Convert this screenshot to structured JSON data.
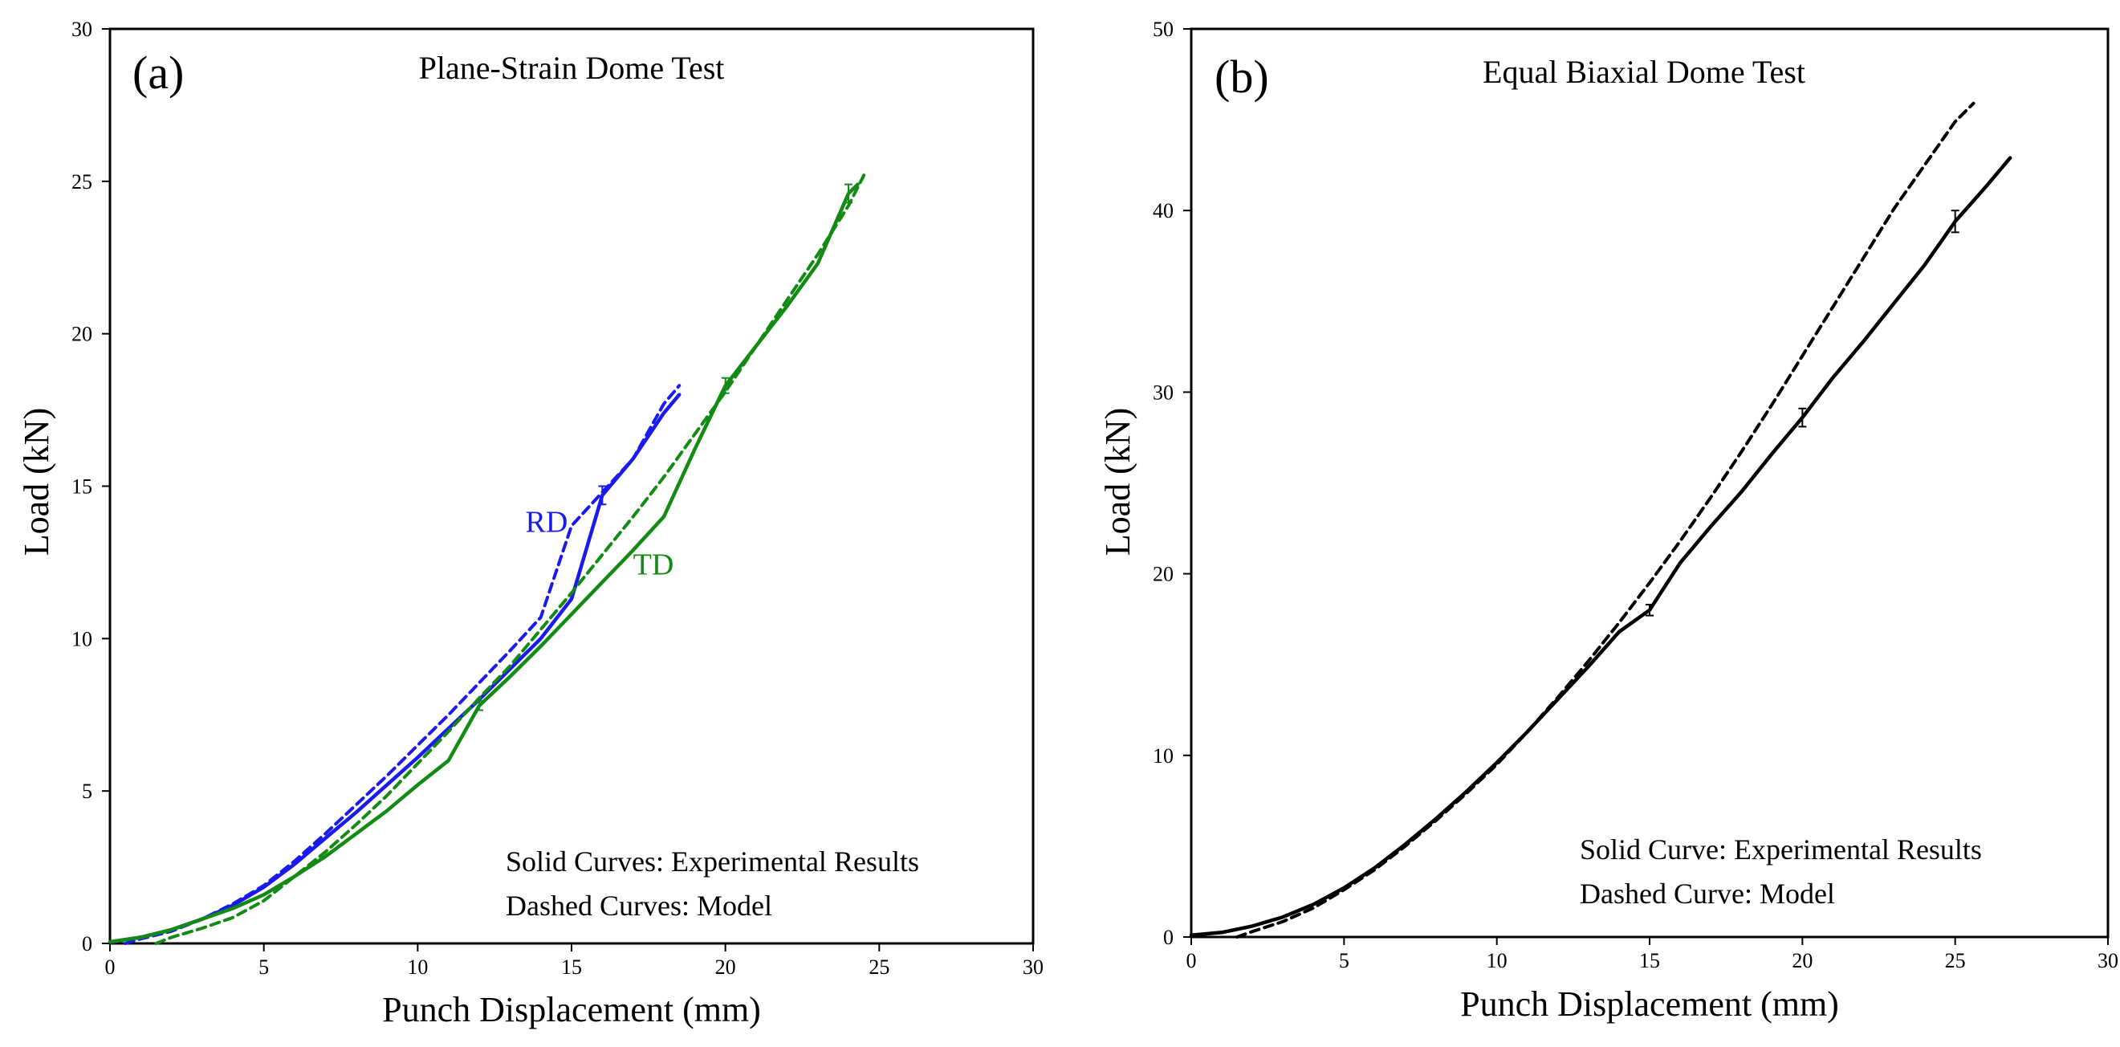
{
  "chart_data": [
    {
      "type": "line",
      "panel_label": "(a)",
      "title": "Plane-Strain Dome Test",
      "xlabel": "Punch Displacement (mm)",
      "ylabel": "Load (kN)",
      "xlim": [
        0,
        30
      ],
      "ylim": [
        0,
        30
      ],
      "xticks": [
        "0",
        "5",
        "10",
        "15",
        "20",
        "25",
        "30"
      ],
      "yticks": [
        "0",
        "5",
        "10",
        "15",
        "20",
        "25",
        "30"
      ],
      "notes": [
        "Solid Curves: Experimental Results",
        "Dashed Curves: Model"
      ],
      "curve_labels": [
        {
          "text": "RD",
          "color": "#1a1aee",
          "x": 13.5,
          "y": 13.5
        },
        {
          "text": "TD",
          "color": "#138a13",
          "x": 17.0,
          "y": 12.1
        }
      ],
      "series": [
        {
          "name": "RD experimental",
          "style": "solid",
          "color": "#1a1aee",
          "x": [
            0,
            1,
            2,
            3,
            4,
            5,
            6,
            7,
            8,
            9,
            10,
            11,
            12,
            13,
            14,
            15,
            16,
            17,
            18,
            18.5
          ],
          "y": [
            0.05,
            0.2,
            0.45,
            0.8,
            1.25,
            1.85,
            2.6,
            3.45,
            4.3,
            5.2,
            6.1,
            7.05,
            8.0,
            9.0,
            10.0,
            11.3,
            14.7,
            15.9,
            17.4,
            18.0
          ],
          "error_bars": [
            {
              "x": 16,
              "y": 14.7,
              "err": 0.3
            }
          ]
        },
        {
          "name": "RD model",
          "style": "dashed",
          "color": "#1a1aee",
          "x": [
            0.5,
            1,
            2,
            3,
            4,
            5,
            6,
            7,
            8,
            9,
            10,
            11,
            12,
            13,
            14,
            15,
            16,
            17,
            18,
            18.5
          ],
          "y": [
            0.0,
            0.15,
            0.4,
            0.8,
            1.3,
            1.9,
            2.7,
            3.6,
            4.55,
            5.5,
            6.5,
            7.5,
            8.55,
            9.6,
            10.7,
            13.7,
            14.8,
            15.9,
            17.7,
            18.3
          ]
        },
        {
          "name": "TD experimental",
          "style": "solid",
          "color": "#138a13",
          "x": [
            0,
            1,
            2,
            3,
            4,
            5,
            6,
            7,
            8,
            9,
            10,
            11,
            12,
            13,
            14,
            15,
            16,
            17,
            18,
            19,
            20,
            21,
            22,
            23,
            24,
            24.3
          ],
          "y": [
            0.05,
            0.2,
            0.45,
            0.8,
            1.15,
            1.6,
            2.2,
            2.85,
            3.6,
            4.35,
            5.2,
            6.0,
            7.8,
            8.75,
            9.75,
            10.8,
            11.85,
            12.9,
            14.0,
            16.2,
            18.3,
            19.6,
            20.9,
            22.3,
            24.6,
            24.9
          ],
          "error_bars": [
            {
              "x": 12,
              "y": 7.8,
              "err": 0.15
            },
            {
              "x": 20,
              "y": 18.3,
              "err": 0.25
            },
            {
              "x": 24,
              "y": 24.6,
              "err": 0.3
            }
          ]
        },
        {
          "name": "TD model",
          "style": "dashed",
          "color": "#138a13",
          "x": [
            1.5,
            2,
            3,
            4,
            5,
            6,
            7,
            8,
            9,
            10,
            11,
            12,
            13,
            14,
            15,
            16,
            17,
            18,
            19,
            20,
            21,
            22,
            23,
            24,
            24.5
          ],
          "y": [
            0.0,
            0.2,
            0.5,
            0.85,
            1.4,
            2.2,
            3.0,
            3.9,
            4.85,
            5.9,
            6.95,
            8.05,
            9.1,
            10.3,
            11.5,
            12.75,
            14.0,
            15.3,
            16.7,
            18.1,
            19.6,
            21.1,
            22.6,
            24.2,
            25.2
          ]
        }
      ]
    },
    {
      "type": "line",
      "panel_label": "(b)",
      "title": "Equal Biaxial Dome Test",
      "xlabel": "Punch Displacement (mm)",
      "ylabel": "Load (kN)",
      "xlim": [
        0,
        30
      ],
      "ylim": [
        0,
        50
      ],
      "xticks": [
        "0",
        "5",
        "10",
        "15",
        "20",
        "25",
        "30"
      ],
      "yticks": [
        "0",
        "10",
        "20",
        "30",
        "40",
        "50"
      ],
      "notes": [
        "Solid Curve: Experimental Results",
        "Dashed Curve: Model"
      ],
      "curve_labels": [],
      "series": [
        {
          "name": "Experimental",
          "style": "solid",
          "color": "#000000",
          "x": [
            0,
            1,
            2,
            3,
            4,
            5,
            6,
            7,
            8,
            9,
            10,
            11,
            12,
            13,
            14,
            15,
            16,
            17,
            18,
            19,
            20,
            21,
            22,
            23,
            24,
            25,
            26,
            26.8
          ],
          "y": [
            0.1,
            0.25,
            0.6,
            1.1,
            1.8,
            2.7,
            3.8,
            5.1,
            6.5,
            8.0,
            9.6,
            11.3,
            13.1,
            14.9,
            16.8,
            18.0,
            20.6,
            22.6,
            24.5,
            26.6,
            28.6,
            30.8,
            32.8,
            34.9,
            37.0,
            39.4,
            41.3,
            42.9
          ],
          "error_bars": [
            {
              "x": 15,
              "y": 18.0,
              "err": 0.3
            },
            {
              "x": 20,
              "y": 28.6,
              "err": 0.5
            },
            {
              "x": 25,
              "y": 39.4,
              "err": 0.6
            }
          ]
        },
        {
          "name": "Model",
          "style": "dashed",
          "color": "#000000",
          "x": [
            1.5,
            2,
            3,
            4,
            5,
            6,
            7,
            8,
            9,
            10,
            11,
            12,
            13,
            14,
            15,
            16,
            17,
            18,
            19,
            20,
            21,
            22,
            23,
            24,
            25,
            25.6
          ],
          "y": [
            0.0,
            0.3,
            0.85,
            1.6,
            2.6,
            3.7,
            5.0,
            6.4,
            7.9,
            9.5,
            11.3,
            13.2,
            15.2,
            17.3,
            19.5,
            21.8,
            24.2,
            26.7,
            29.3,
            32.0,
            34.7,
            37.4,
            40.1,
            42.5,
            44.9,
            45.9
          ]
        }
      ]
    }
  ]
}
